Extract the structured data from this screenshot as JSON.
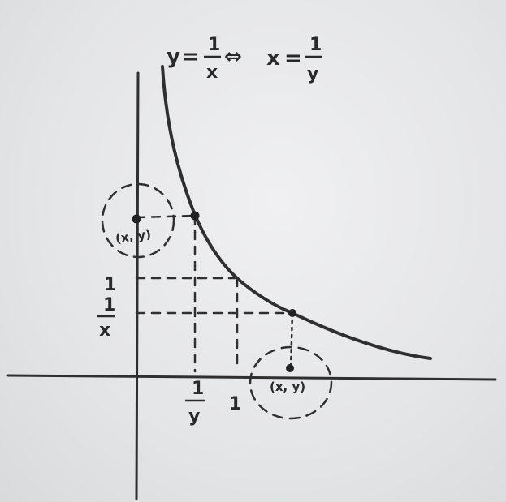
{
  "equation": {
    "lhs": "y",
    "eq1": "=",
    "num1": "1",
    "den1": "x",
    "iff": "⇔",
    "mid": "x",
    "eq2": "=",
    "num2": "1",
    "den2": "y"
  },
  "labels": {
    "one_y_axis": "1",
    "one_x_axis": "1",
    "frac_y_num": "1",
    "frac_y_den": "x",
    "frac_x_num": "1",
    "frac_x_den": "y",
    "point_original": "(x, y)",
    "point_reflected": "(x, y)"
  },
  "colors": {
    "ink": "#2a2a2a"
  }
}
